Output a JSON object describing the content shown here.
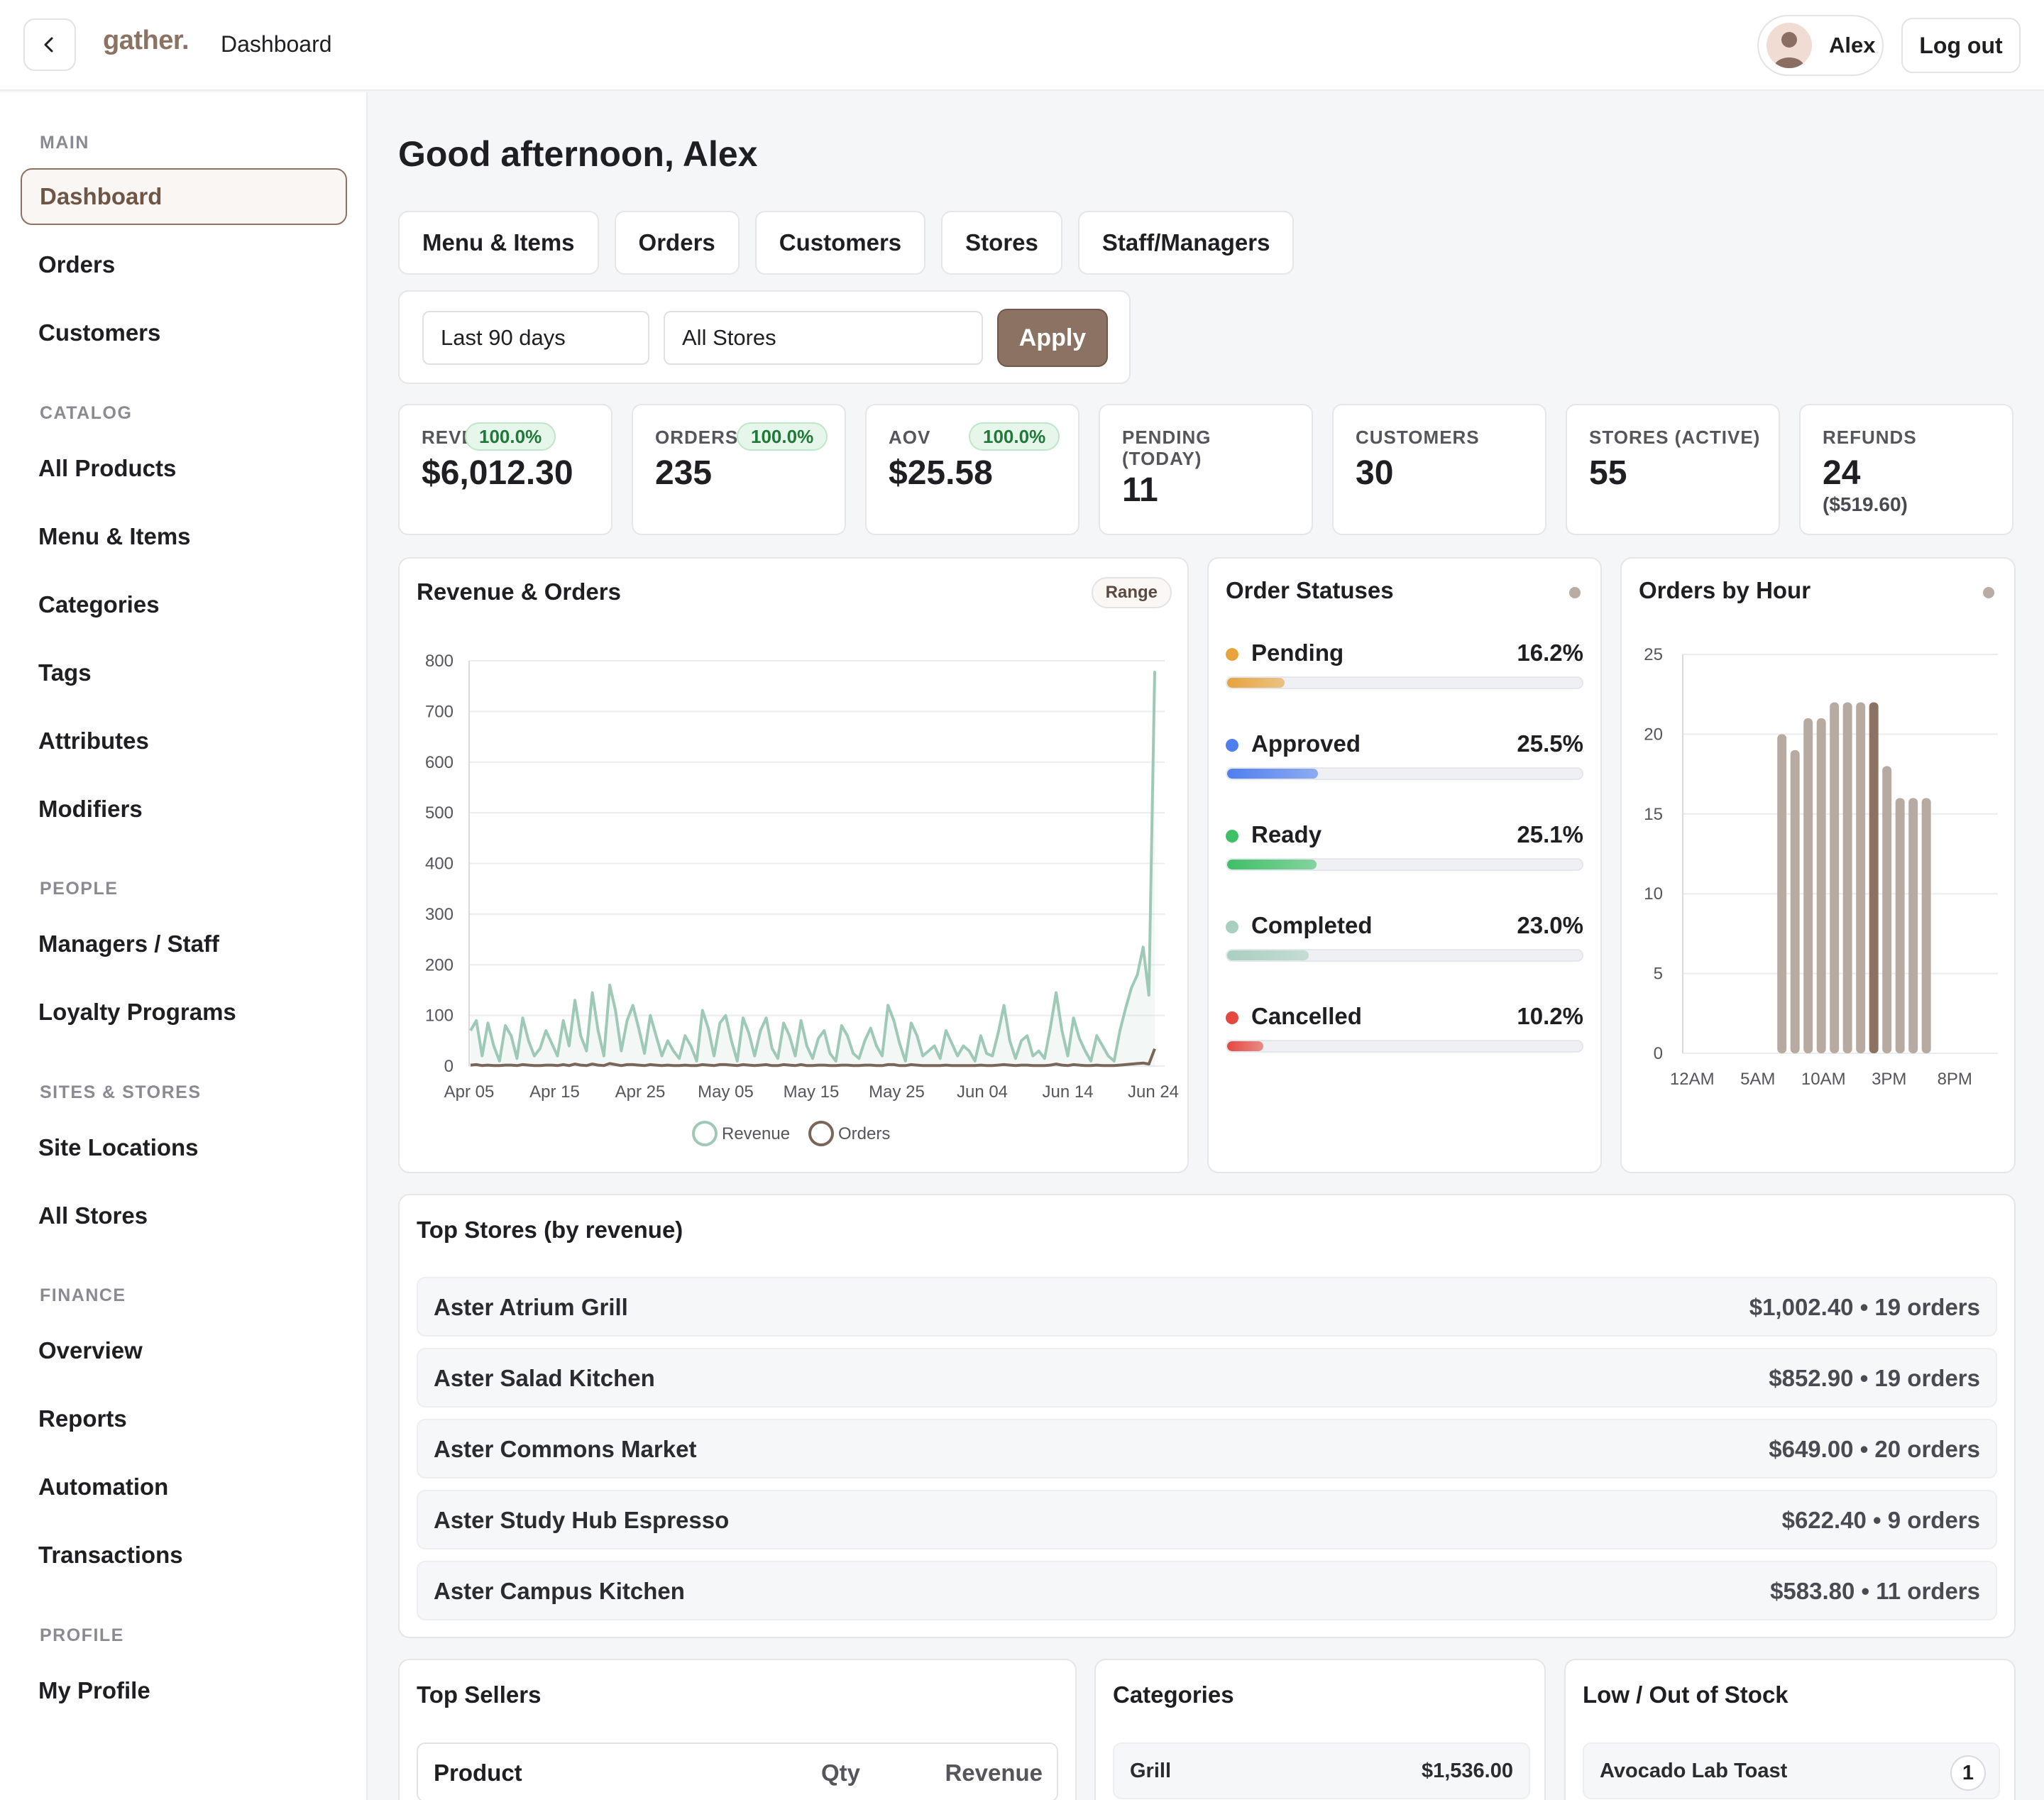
{
  "header": {
    "logo": "gather.",
    "title": "Dashboard",
    "user_name": "Alex",
    "logout_label": "Log out"
  },
  "sidebar": {
    "sections": [
      {
        "label": "MAIN",
        "items": [
          "Dashboard",
          "Orders",
          "Customers"
        ]
      },
      {
        "label": "CATALOG",
        "items": [
          "All Products",
          "Menu & Items",
          "Categories",
          "Tags",
          "Attributes",
          "Modifiers"
        ]
      },
      {
        "label": "PEOPLE",
        "items": [
          "Managers / Staff",
          "Loyalty Programs"
        ]
      },
      {
        "label": "SITES & STORES",
        "items": [
          "Site Locations",
          "All Stores"
        ]
      },
      {
        "label": "FINANCE",
        "items": [
          "Overview",
          "Reports",
          "Automation",
          "Transactions"
        ]
      },
      {
        "label": "PROFILE",
        "items": [
          "My Profile"
        ]
      }
    ],
    "active_item": "Dashboard"
  },
  "main": {
    "greeting": "Good afternoon, Alex",
    "tabs": [
      "Menu & Items",
      "Orders",
      "Customers",
      "Stores",
      "Staff/Managers"
    ],
    "filters": {
      "period": "Last 90 days",
      "store": "All Stores",
      "apply_label": "Apply"
    },
    "kpis": [
      {
        "label": "REVENUE",
        "value": "$6,012.30",
        "badge": "100.0%"
      },
      {
        "label": "ORDERS",
        "value": "235",
        "badge": "100.0%"
      },
      {
        "label": "AOV",
        "value": "$25.58",
        "badge": "100.0%"
      },
      {
        "label": "PENDING (TODAY)",
        "value": "11"
      },
      {
        "label": "CUSTOMERS",
        "value": "30"
      },
      {
        "label": "STORES (ACTIVE)",
        "value": "55"
      },
      {
        "label": "REFUNDS",
        "value": "24",
        "sub": "($519.60)"
      }
    ]
  },
  "revenue_panel": {
    "title": "Revenue & Orders",
    "range_label": "Range"
  },
  "status_panel": {
    "title": "Order Statuses",
    "statuses": [
      {
        "name": "Pending",
        "pct": "16.2%",
        "value": 16.2,
        "color": "#e8a33c"
      },
      {
        "name": "Approved",
        "pct": "25.5%",
        "value": 25.5,
        "color": "#4f7ef0"
      },
      {
        "name": "Ready",
        "pct": "25.1%",
        "value": 25.1,
        "color": "#3fbf66"
      },
      {
        "name": "Completed",
        "pct": "23.0%",
        "value": 23.0,
        "color": "#a9cfc0"
      },
      {
        "name": "Cancelled",
        "pct": "10.2%",
        "value": 10.2,
        "color": "#e5483f"
      }
    ]
  },
  "hour_panel": {
    "title": "Orders by Hour"
  },
  "chart_data": [
    {
      "type": "line",
      "title": "Revenue & Orders",
      "x_ticks": [
        "Apr 05",
        "Apr 15",
        "Apr 25",
        "May 05",
        "May 15",
        "May 25",
        "Jun 04",
        "Jun 14",
        "Jun 24"
      ],
      "y_ticks": [
        0,
        100,
        200,
        300,
        400,
        500,
        600,
        700,
        800
      ],
      "ylim": [
        0,
        800
      ],
      "legend": "bottom",
      "series": [
        {
          "name": "Revenue",
          "color": "#9fc9b7",
          "values": [
            70,
            90,
            20,
            85,
            40,
            10,
            80,
            60,
            15,
            95,
            50,
            20,
            35,
            70,
            45,
            20,
            90,
            40,
            130,
            60,
            30,
            145,
            70,
            20,
            160,
            110,
            30,
            90,
            120,
            75,
            25,
            100,
            60,
            20,
            50,
            30,
            15,
            60,
            40,
            10,
            110,
            75,
            20,
            85,
            100,
            50,
            10,
            95,
            65,
            20,
            70,
            95,
            35,
            15,
            85,
            60,
            20,
            90,
            40,
            15,
            55,
            70,
            25,
            10,
            80,
            60,
            25,
            15,
            50,
            75,
            40,
            20,
            120,
            90,
            45,
            10,
            85,
            60,
            20,
            30,
            40,
            15,
            70,
            45,
            20,
            40,
            30,
            10,
            60,
            25,
            20,
            65,
            120,
            50,
            15,
            50,
            60,
            20,
            30,
            15,
            75,
            145,
            70,
            20,
            95,
            55,
            30,
            10,
            60,
            40,
            20,
            10,
            70,
            115,
            155,
            180,
            235,
            140,
            780
          ]
        },
        {
          "name": "Orders",
          "color": "#7a6658",
          "values": [
            2,
            3,
            1,
            2,
            1,
            1,
            2,
            2,
            1,
            3,
            2,
            1,
            1,
            2,
            2,
            1,
            3,
            1,
            4,
            2,
            1,
            4,
            2,
            1,
            5,
            3,
            1,
            3,
            3,
            2,
            1,
            3,
            2,
            1,
            2,
            1,
            1,
            2,
            1,
            1,
            3,
            2,
            1,
            3,
            3,
            2,
            1,
            3,
            2,
            1,
            2,
            3,
            1,
            1,
            3,
            2,
            1,
            3,
            1,
            1,
            2,
            2,
            1,
            1,
            2,
            2,
            1,
            1,
            2,
            2,
            1,
            1,
            3,
            3,
            1,
            1,
            3,
            2,
            1,
            1,
            1,
            1,
            2,
            1,
            1,
            1,
            1,
            1,
            2,
            1,
            1,
            2,
            3,
            2,
            1,
            2,
            2,
            1,
            1,
            1,
            2,
            4,
            2,
            1,
            3,
            2,
            1,
            1,
            2,
            1,
            1,
            1,
            2,
            3,
            4,
            5,
            6,
            4,
            34
          ]
        }
      ]
    },
    {
      "type": "bar",
      "title": "Orders by Hour",
      "x_ticks": [
        "12AM",
        "5AM",
        "10AM",
        "3PM",
        "8PM"
      ],
      "y_ticks": [
        0,
        5,
        10,
        15,
        20,
        25
      ],
      "ylim": [
        0,
        25
      ],
      "categories": [
        "12AM",
        "1AM",
        "2AM",
        "3AM",
        "4AM",
        "5AM",
        "6AM",
        "7AM",
        "8AM",
        "9AM",
        "10AM",
        "11AM",
        "12PM",
        "1PM",
        "2PM",
        "3PM",
        "4PM",
        "5PM",
        "6PM",
        "7PM",
        "8PM",
        "9PM",
        "10PM",
        "11PM"
      ],
      "values": [
        0,
        0,
        0,
        0,
        0,
        0,
        0,
        20,
        19,
        21,
        21,
        22,
        22,
        22,
        22,
        18,
        16,
        16,
        16,
        0,
        0,
        0,
        0,
        0
      ],
      "highlight_category": "2PM",
      "color": "#b6aaa1",
      "highlight_color": "#8b7263"
    }
  ],
  "top_stores": {
    "title": "Top Stores (by revenue)",
    "rows": [
      {
        "name": "Aster Atrium Grill",
        "value": "$1,002.40 • 19 orders"
      },
      {
        "name": "Aster Salad Kitchen",
        "value": "$852.90 • 19 orders"
      },
      {
        "name": "Aster Commons Market",
        "value": "$649.00 • 20 orders"
      },
      {
        "name": "Aster Study Hub Espresso",
        "value": "$622.40 • 9 orders"
      },
      {
        "name": "Aster Campus Kitchen",
        "value": "$583.80 • 11 orders"
      }
    ]
  },
  "top_sellers": {
    "title": "Top Sellers",
    "columns": [
      "Product",
      "Qty",
      "Revenue"
    ]
  },
  "categories": {
    "title": "Categories",
    "rows": [
      {
        "name": "Grill",
        "value": "$1,536.00"
      }
    ]
  },
  "low_stock": {
    "title": "Low / Out of Stock",
    "rows": [
      {
        "name": "Avocado Lab Toast",
        "count": "1"
      }
    ]
  }
}
